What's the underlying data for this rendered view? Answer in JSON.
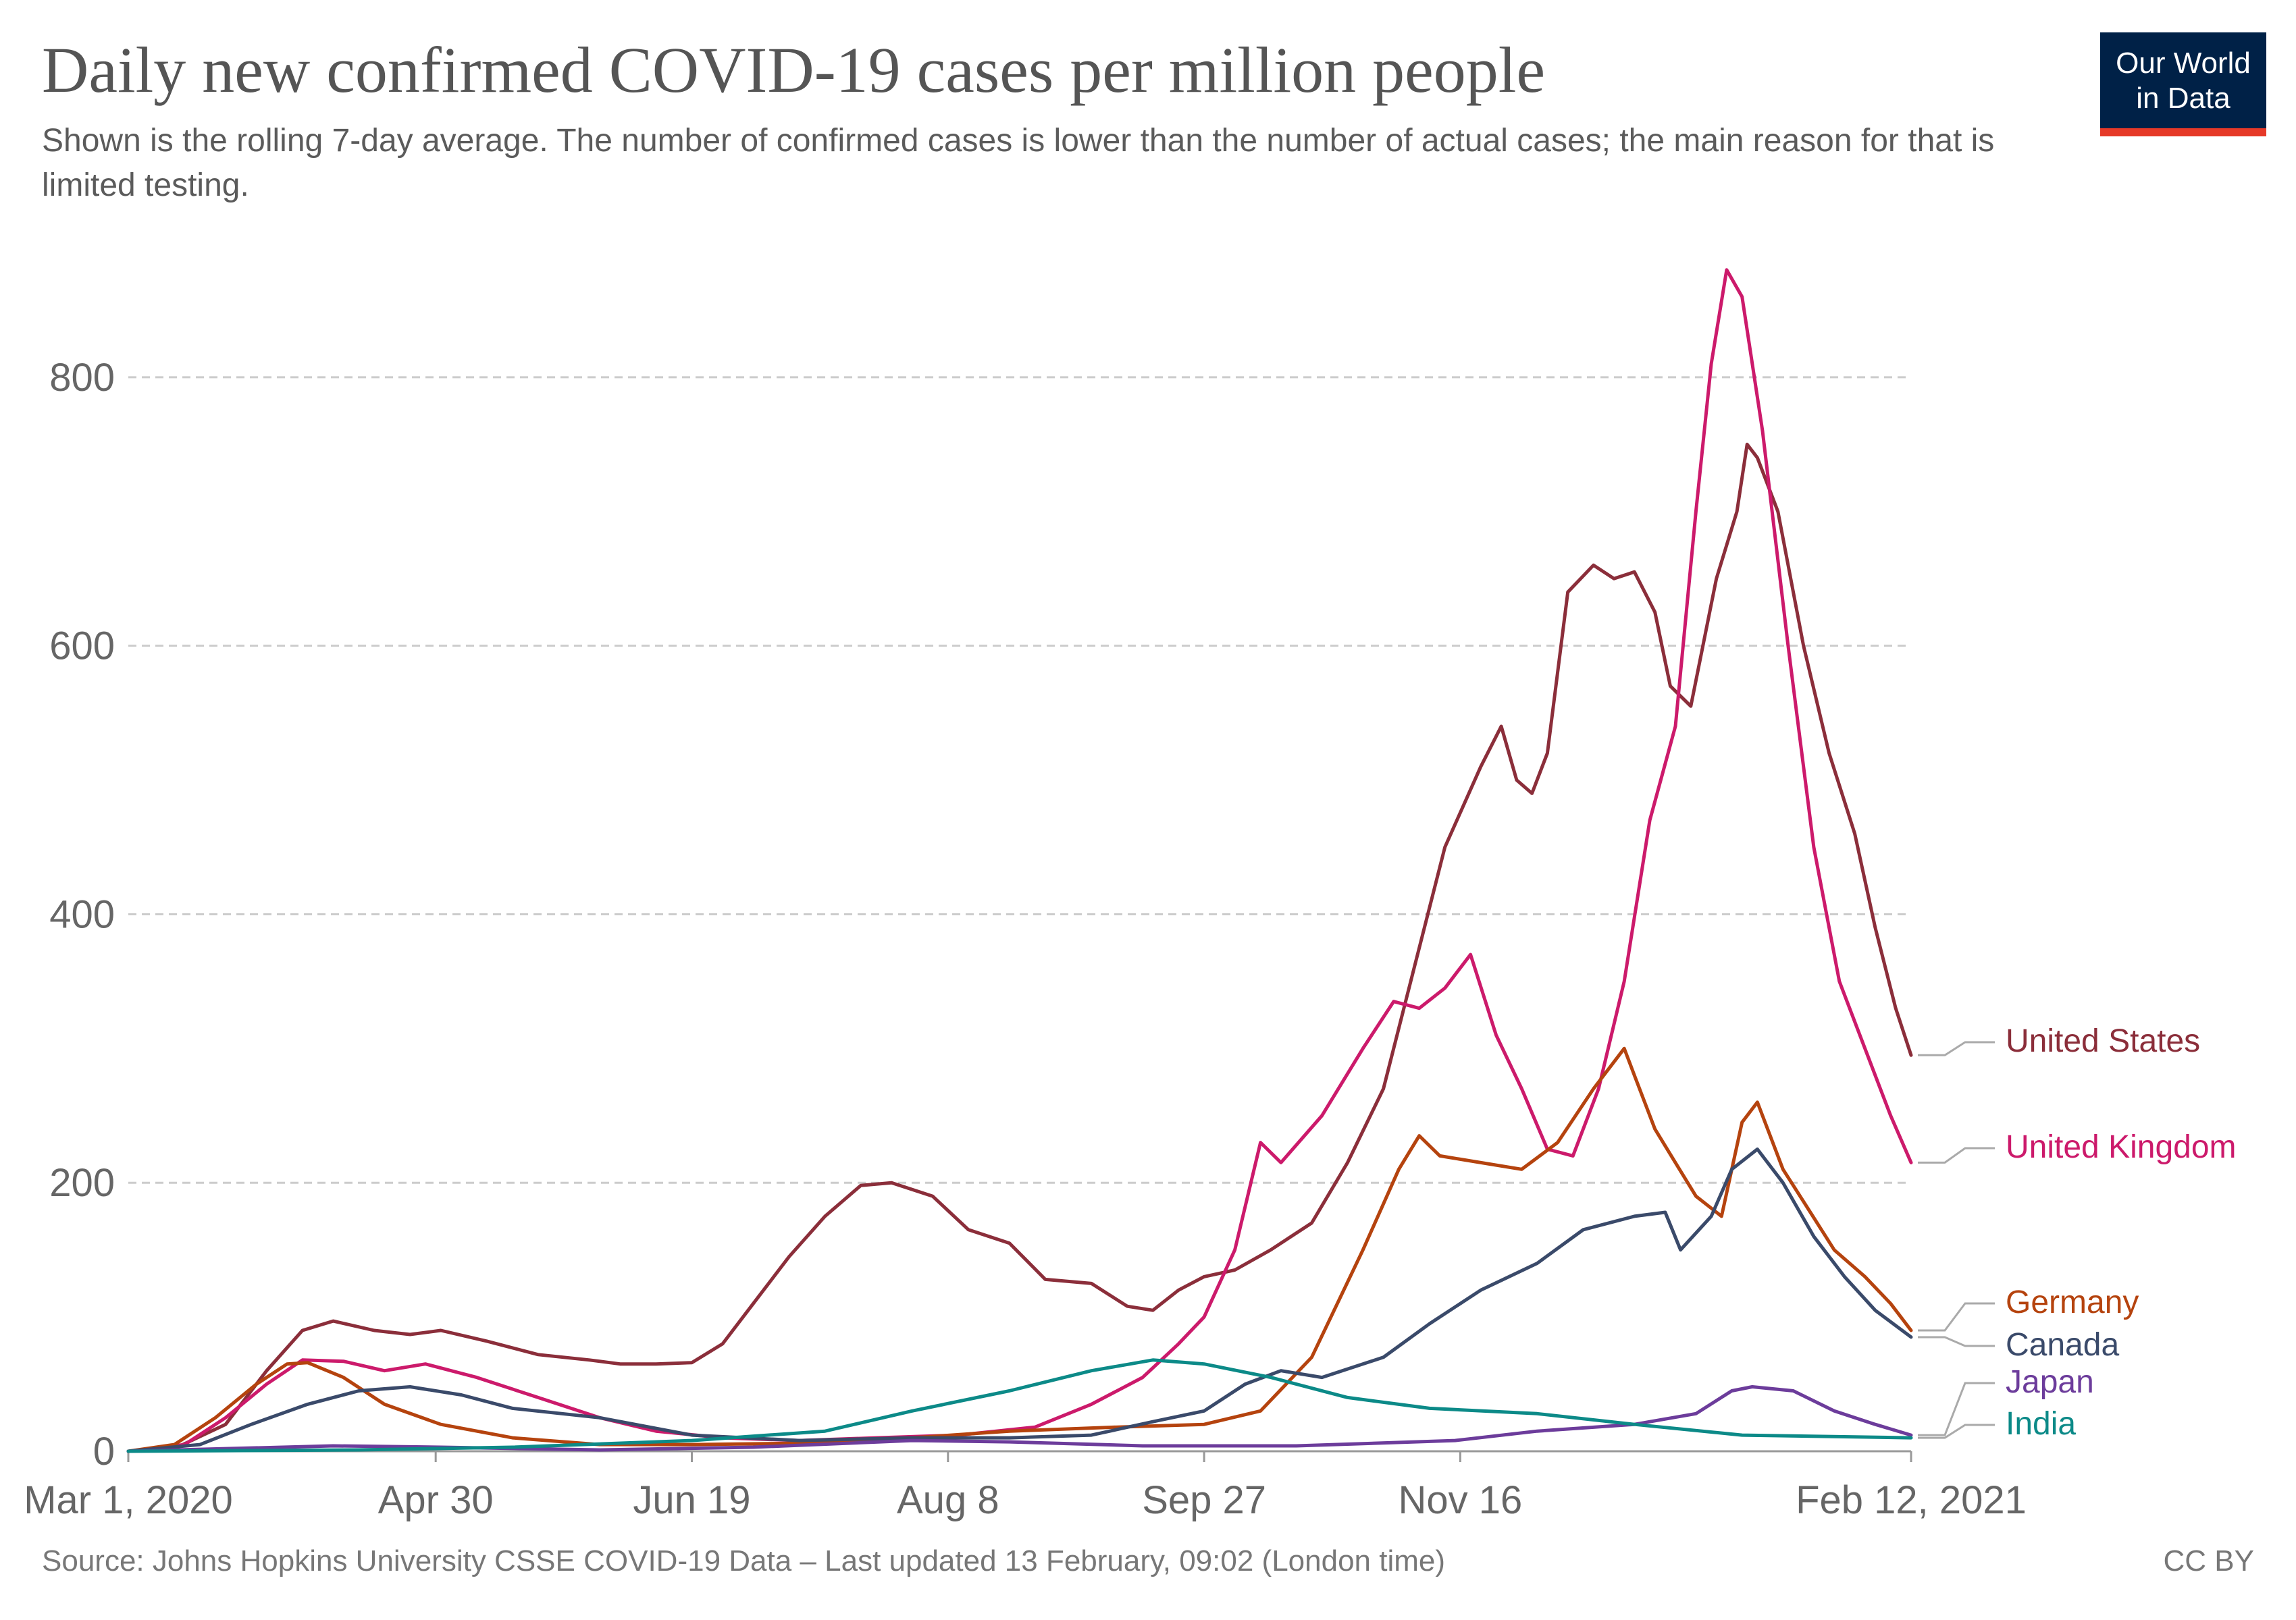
{
  "title": "Daily new confirmed COVID-19 cases per million people",
  "subtitle": "Shown is the rolling 7-day average. The number of confirmed cases is lower than the number of actual cases; the main reason for that is limited testing.",
  "logo": {
    "line1": "Our World",
    "line2": "in Data",
    "bg": "#002147",
    "accent": "#e63928"
  },
  "source": "Source: Johns Hopkins University CSSE COVID-19 Data – Last updated 13 February, 09:02 (London time)",
  "license": "CC BY",
  "chart_data": {
    "type": "line",
    "title": "Daily new confirmed COVID-19 cases per million people",
    "xlabel": "",
    "ylabel": "",
    "ylim": [
      0,
      900
    ],
    "xlim": [
      "2020-03-01",
      "2021-02-12"
    ],
    "yticks": [
      0,
      200,
      400,
      600,
      800
    ],
    "xticks": [
      {
        "date": "2020-03-01",
        "label": "Mar 1, 2020"
      },
      {
        "date": "2020-04-30",
        "label": "Apr 30"
      },
      {
        "date": "2020-06-19",
        "label": "Jun 19"
      },
      {
        "date": "2020-08-08",
        "label": "Aug 8"
      },
      {
        "date": "2020-09-27",
        "label": "Sep 27"
      },
      {
        "date": "2020-11-16",
        "label": "Nov 16"
      },
      {
        "date": "2021-02-12",
        "label": "Feb 12, 2021"
      }
    ],
    "grid": "horizontal-dashed",
    "legend": "right",
    "series": [
      {
        "name": "United States",
        "color": "#8b2e3a",
        "points": [
          [
            "2020-03-01",
            0
          ],
          [
            "2020-03-10",
            2
          ],
          [
            "2020-03-20",
            20
          ],
          [
            "2020-03-28",
            60
          ],
          [
            "2020-04-04",
            90
          ],
          [
            "2020-04-10",
            97
          ],
          [
            "2020-04-18",
            90
          ],
          [
            "2020-04-25",
            87
          ],
          [
            "2020-05-01",
            90
          ],
          [
            "2020-05-10",
            82
          ],
          [
            "2020-05-20",
            72
          ],
          [
            "2020-05-30",
            68
          ],
          [
            "2020-06-05",
            65
          ],
          [
            "2020-06-12",
            65
          ],
          [
            "2020-06-19",
            66
          ],
          [
            "2020-06-25",
            80
          ],
          [
            "2020-07-01",
            110
          ],
          [
            "2020-07-08",
            145
          ],
          [
            "2020-07-15",
            175
          ],
          [
            "2020-07-22",
            198
          ],
          [
            "2020-07-28",
            200
          ],
          [
            "2020-08-05",
            190
          ],
          [
            "2020-08-12",
            165
          ],
          [
            "2020-08-20",
            155
          ],
          [
            "2020-08-27",
            128
          ],
          [
            "2020-09-05",
            125
          ],
          [
            "2020-09-12",
            108
          ],
          [
            "2020-09-17",
            105
          ],
          [
            "2020-09-22",
            120
          ],
          [
            "2020-09-27",
            130
          ],
          [
            "2020-10-03",
            135
          ],
          [
            "2020-10-10",
            150
          ],
          [
            "2020-10-18",
            170
          ],
          [
            "2020-10-25",
            215
          ],
          [
            "2020-11-01",
            270
          ],
          [
            "2020-11-07",
            360
          ],
          [
            "2020-11-13",
            450
          ],
          [
            "2020-11-20",
            510
          ],
          [
            "2020-11-24",
            540
          ],
          [
            "2020-11-27",
            500
          ],
          [
            "2020-11-30",
            490
          ],
          [
            "2020-12-03",
            520
          ],
          [
            "2020-12-07",
            640
          ],
          [
            "2020-12-12",
            660
          ],
          [
            "2020-12-16",
            650
          ],
          [
            "2020-12-20",
            655
          ],
          [
            "2020-12-24",
            625
          ],
          [
            "2020-12-27",
            570
          ],
          [
            "2020-12-31",
            555
          ],
          [
            "2021-01-05",
            650
          ],
          [
            "2021-01-09",
            700
          ],
          [
            "2021-01-11",
            750
          ],
          [
            "2021-01-13",
            740
          ],
          [
            "2021-01-17",
            700
          ],
          [
            "2021-01-22",
            600
          ],
          [
            "2021-01-27",
            520
          ],
          [
            "2021-02-01",
            460
          ],
          [
            "2021-02-05",
            390
          ],
          [
            "2021-02-09",
            330
          ],
          [
            "2021-02-12",
            295
          ]
        ]
      },
      {
        "name": "United Kingdom",
        "color": "#cc1a6b",
        "points": [
          [
            "2020-03-01",
            0
          ],
          [
            "2020-03-12",
            5
          ],
          [
            "2020-03-20",
            25
          ],
          [
            "2020-03-28",
            50
          ],
          [
            "2020-04-04",
            68
          ],
          [
            "2020-04-12",
            67
          ],
          [
            "2020-04-20",
            60
          ],
          [
            "2020-04-28",
            65
          ],
          [
            "2020-05-08",
            55
          ],
          [
            "2020-05-20",
            40
          ],
          [
            "2020-06-01",
            25
          ],
          [
            "2020-06-12",
            15
          ],
          [
            "2020-06-25",
            10
          ],
          [
            "2020-07-10",
            8
          ],
          [
            "2020-07-25",
            10
          ],
          [
            "2020-08-10",
            12
          ],
          [
            "2020-08-25",
            18
          ],
          [
            "2020-09-05",
            35
          ],
          [
            "2020-09-15",
            55
          ],
          [
            "2020-09-22",
            80
          ],
          [
            "2020-09-27",
            100
          ],
          [
            "2020-10-03",
            150
          ],
          [
            "2020-10-08",
            230
          ],
          [
            "2020-10-12",
            215
          ],
          [
            "2020-10-20",
            250
          ],
          [
            "2020-10-28",
            300
          ],
          [
            "2020-11-03",
            335
          ],
          [
            "2020-11-08",
            330
          ],
          [
            "2020-11-13",
            345
          ],
          [
            "2020-11-18",
            370
          ],
          [
            "2020-11-23",
            310
          ],
          [
            "2020-11-28",
            270
          ],
          [
            "2020-12-03",
            225
          ],
          [
            "2020-12-08",
            220
          ],
          [
            "2020-12-13",
            270
          ],
          [
            "2020-12-18",
            350
          ],
          [
            "2020-12-23",
            470
          ],
          [
            "2020-12-28",
            540
          ],
          [
            "2021-01-01",
            700
          ],
          [
            "2021-01-04",
            810
          ],
          [
            "2021-01-07",
            880
          ],
          [
            "2021-01-10",
            860
          ],
          [
            "2021-01-14",
            760
          ],
          [
            "2021-01-19",
            600
          ],
          [
            "2021-01-24",
            450
          ],
          [
            "2021-01-29",
            350
          ],
          [
            "2021-02-03",
            300
          ],
          [
            "2021-02-08",
            250
          ],
          [
            "2021-02-12",
            215
          ]
        ]
      },
      {
        "name": "Germany",
        "color": "#b5430e",
        "points": [
          [
            "2020-03-01",
            0
          ],
          [
            "2020-03-10",
            5
          ],
          [
            "2020-03-18",
            25
          ],
          [
            "2020-03-26",
            50
          ],
          [
            "2020-04-01",
            65
          ],
          [
            "2020-04-05",
            66
          ],
          [
            "2020-04-12",
            55
          ],
          [
            "2020-04-20",
            35
          ],
          [
            "2020-05-01",
            20
          ],
          [
            "2020-05-15",
            10
          ],
          [
            "2020-06-01",
            5
          ],
          [
            "2020-06-19",
            5
          ],
          [
            "2020-07-10",
            6
          ],
          [
            "2020-08-01",
            10
          ],
          [
            "2020-08-20",
            15
          ],
          [
            "2020-09-10",
            18
          ],
          [
            "2020-09-27",
            20
          ],
          [
            "2020-10-08",
            30
          ],
          [
            "2020-10-18",
            70
          ],
          [
            "2020-10-28",
            150
          ],
          [
            "2020-11-04",
            210
          ],
          [
            "2020-11-08",
            235
          ],
          [
            "2020-11-12",
            220
          ],
          [
            "2020-11-20",
            215
          ],
          [
            "2020-11-28",
            210
          ],
          [
            "2020-12-05",
            230
          ],
          [
            "2020-12-12",
            270
          ],
          [
            "2020-12-18",
            300
          ],
          [
            "2020-12-20",
            280
          ],
          [
            "2020-12-24",
            240
          ],
          [
            "2020-12-28",
            215
          ],
          [
            "2021-01-01",
            190
          ],
          [
            "2021-01-06",
            175
          ],
          [
            "2021-01-10",
            245
          ],
          [
            "2021-01-13",
            260
          ],
          [
            "2021-01-18",
            210
          ],
          [
            "2021-01-23",
            180
          ],
          [
            "2021-01-28",
            150
          ],
          [
            "2021-02-03",
            130
          ],
          [
            "2021-02-08",
            110
          ],
          [
            "2021-02-12",
            90
          ]
        ]
      },
      {
        "name": "Canada",
        "color": "#3a4a6a",
        "points": [
          [
            "2020-03-01",
            0
          ],
          [
            "2020-03-15",
            5
          ],
          [
            "2020-03-25",
            20
          ],
          [
            "2020-04-05",
            35
          ],
          [
            "2020-04-15",
            45
          ],
          [
            "2020-04-25",
            48
          ],
          [
            "2020-05-05",
            42
          ],
          [
            "2020-05-15",
            32
          ],
          [
            "2020-06-01",
            25
          ],
          [
            "2020-06-19",
            12
          ],
          [
            "2020-07-10",
            8
          ],
          [
            "2020-08-01",
            10
          ],
          [
            "2020-08-20",
            10
          ],
          [
            "2020-09-05",
            12
          ],
          [
            "2020-09-17",
            22
          ],
          [
            "2020-09-27",
            30
          ],
          [
            "2020-10-05",
            50
          ],
          [
            "2020-10-12",
            60
          ],
          [
            "2020-10-20",
            55
          ],
          [
            "2020-11-01",
            70
          ],
          [
            "2020-11-10",
            95
          ],
          [
            "2020-11-20",
            120
          ],
          [
            "2020-12-01",
            140
          ],
          [
            "2020-12-10",
            165
          ],
          [
            "2020-12-20",
            175
          ],
          [
            "2020-12-26",
            178
          ],
          [
            "2020-12-29",
            150
          ],
          [
            "2021-01-04",
            175
          ],
          [
            "2021-01-08",
            210
          ],
          [
            "2021-01-13",
            225
          ],
          [
            "2021-01-18",
            200
          ],
          [
            "2021-01-24",
            160
          ],
          [
            "2021-01-30",
            130
          ],
          [
            "2021-02-05",
            105
          ],
          [
            "2021-02-12",
            85
          ]
        ]
      },
      {
        "name": "Japan",
        "color": "#6c3c9b",
        "points": [
          [
            "2020-03-01",
            0
          ],
          [
            "2020-04-10",
            4
          ],
          [
            "2020-05-01",
            3
          ],
          [
            "2020-06-01",
            1
          ],
          [
            "2020-07-01",
            3
          ],
          [
            "2020-08-01",
            8
          ],
          [
            "2020-08-20",
            7
          ],
          [
            "2020-09-15",
            4
          ],
          [
            "2020-10-15",
            4
          ],
          [
            "2020-11-15",
            8
          ],
          [
            "2020-12-01",
            15
          ],
          [
            "2020-12-20",
            20
          ],
          [
            "2021-01-01",
            28
          ],
          [
            "2021-01-08",
            45
          ],
          [
            "2021-01-12",
            48
          ],
          [
            "2021-01-20",
            45
          ],
          [
            "2021-01-28",
            30
          ],
          [
            "2021-02-05",
            20
          ],
          [
            "2021-02-12",
            12
          ]
        ]
      },
      {
        "name": "India",
        "color": "#0c8a88",
        "points": [
          [
            "2020-03-01",
            0
          ],
          [
            "2020-04-15",
            1
          ],
          [
            "2020-05-15",
            3
          ],
          [
            "2020-06-19",
            8
          ],
          [
            "2020-07-15",
            15
          ],
          [
            "2020-08-01",
            30
          ],
          [
            "2020-08-20",
            45
          ],
          [
            "2020-09-05",
            60
          ],
          [
            "2020-09-17",
            68
          ],
          [
            "2020-09-27",
            65
          ],
          [
            "2020-10-10",
            55
          ],
          [
            "2020-10-25",
            40
          ],
          [
            "2020-11-10",
            32
          ],
          [
            "2020-12-01",
            28
          ],
          [
            "2020-12-20",
            20
          ],
          [
            "2021-01-10",
            12
          ],
          [
            "2021-02-12",
            10
          ]
        ]
      }
    ]
  }
}
